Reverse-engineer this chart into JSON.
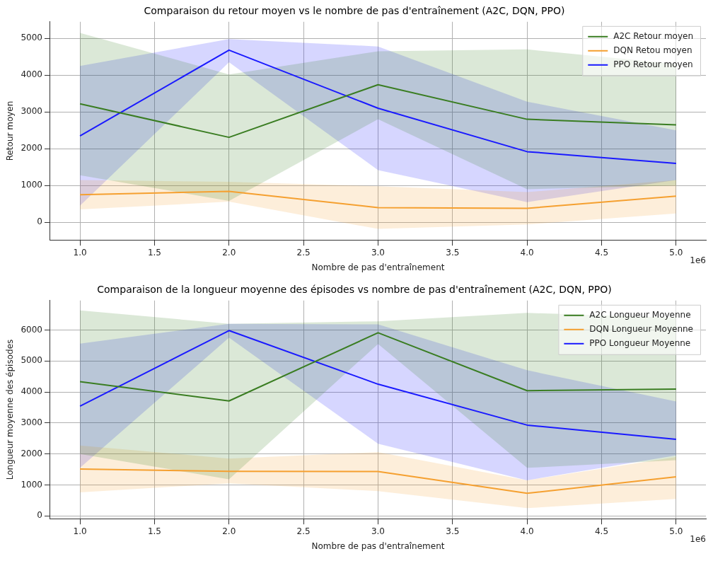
{
  "chart_data": [
    {
      "type": "line",
      "title": "Comparaison du retour moyen vs le nombre de pas d'entraînement (A2C, DQN, PPO)",
      "xlabel": "Nombre de pas d'entraînement",
      "ylabel": "Retour moyen",
      "annotations": [
        "1e6"
      ],
      "x": [
        1,
        2,
        3,
        4,
        5
      ],
      "series": [
        {
          "name": "A2C Retour moyen",
          "color": "#3a7d22",
          "values": [
            3220,
            2310,
            3740,
            2800,
            2650
          ],
          "lower": [
            1280,
            580,
            2800,
            900,
            1000
          ],
          "upper": [
            5150,
            4020,
            4650,
            4700,
            4300
          ]
        },
        {
          "name": "DQN Retou moyen",
          "color": "#f5a030",
          "values": [
            750,
            840,
            400,
            380,
            710
          ],
          "lower": [
            350,
            560,
            -180,
            -60,
            240
          ],
          "upper": [
            1150,
            1100,
            980,
            820,
            1150
          ]
        },
        {
          "name": "PPO Retour moyen",
          "color": "#1a1aff",
          "values": [
            2350,
            4680,
            3100,
            1920,
            1600
          ],
          "lower": [
            450,
            4350,
            1420,
            550,
            1150
          ],
          "upper": [
            4250,
            4980,
            4780,
            3280,
            2500
          ]
        }
      ],
      "xlim": [
        0.8,
        5.2
      ],
      "xticks": [
        {
          "value": 1,
          "label": "1.0"
        },
        {
          "value": 1.5,
          "label": "1.5"
        },
        {
          "value": 2,
          "label": "2.0"
        },
        {
          "value": 2.5,
          "label": "2.5"
        },
        {
          "value": 3,
          "label": "3.0"
        },
        {
          "value": 3.5,
          "label": "3.5"
        },
        {
          "value": 4,
          "label": "4.0"
        },
        {
          "value": 4.5,
          "label": "4.5"
        },
        {
          "value": 5,
          "label": "5.0"
        }
      ],
      "ylim": [
        -480,
        5450
      ],
      "yticks": [
        0,
        1000,
        2000,
        3000,
        4000,
        5000
      ],
      "grid": true,
      "legend": "top right"
    },
    {
      "type": "line",
      "title": "Comparaison de la longueur moyenne des épisodes vs nombre de pas d'entraînement (A2C, DQN, PPO)",
      "xlabel": "Nombre de pas d'entraînement",
      "ylabel": "Longueur moyenne des épisodes",
      "annotations": [
        "1e6"
      ],
      "x": [
        1,
        2,
        3,
        4,
        5
      ],
      "series": [
        {
          "name": "A2C Longueur Moyenne",
          "color": "#3a7d22",
          "values": [
            4330,
            3710,
            5910,
            4040,
            4090
          ],
          "lower": [
            2000,
            1180,
            5550,
            1550,
            1800
          ],
          "upper": [
            6630,
            6200,
            6280,
            6550,
            6400
          ]
        },
        {
          "name": "DQN Longueur Moyenne",
          "color": "#f5a030",
          "values": [
            1510,
            1440,
            1430,
            730,
            1260
          ],
          "lower": [
            760,
            1050,
            800,
            250,
            550
          ],
          "upper": [
            2270,
            1850,
            2060,
            1150,
            1900
          ]
        },
        {
          "name": "PPO Longueur Moyenne",
          "color": "#1a1aff",
          "values": [
            3540,
            5980,
            4250,
            2930,
            2470
          ],
          "lower": [
            1550,
            5750,
            2330,
            1150,
            1950
          ],
          "upper": [
            5560,
            6200,
            6180,
            4700,
            3690
          ]
        }
      ],
      "xlim": [
        0.8,
        5.2
      ],
      "xticks": [
        {
          "value": 1,
          "label": "1.0"
        },
        {
          "value": 1.5,
          "label": "1.5"
        },
        {
          "value": 2,
          "label": "2.0"
        },
        {
          "value": 2.5,
          "label": "2.5"
        },
        {
          "value": 3,
          "label": "3.0"
        },
        {
          "value": 3.5,
          "label": "3.5"
        },
        {
          "value": 4,
          "label": "4.0"
        },
        {
          "value": 4.5,
          "label": "4.5"
        },
        {
          "value": 5,
          "label": "5.0"
        }
      ],
      "ylim": [
        -90,
        6950
      ],
      "yticks": [
        0,
        1000,
        2000,
        3000,
        4000,
        5000,
        6000
      ],
      "grid": true,
      "legend": "top right"
    }
  ]
}
